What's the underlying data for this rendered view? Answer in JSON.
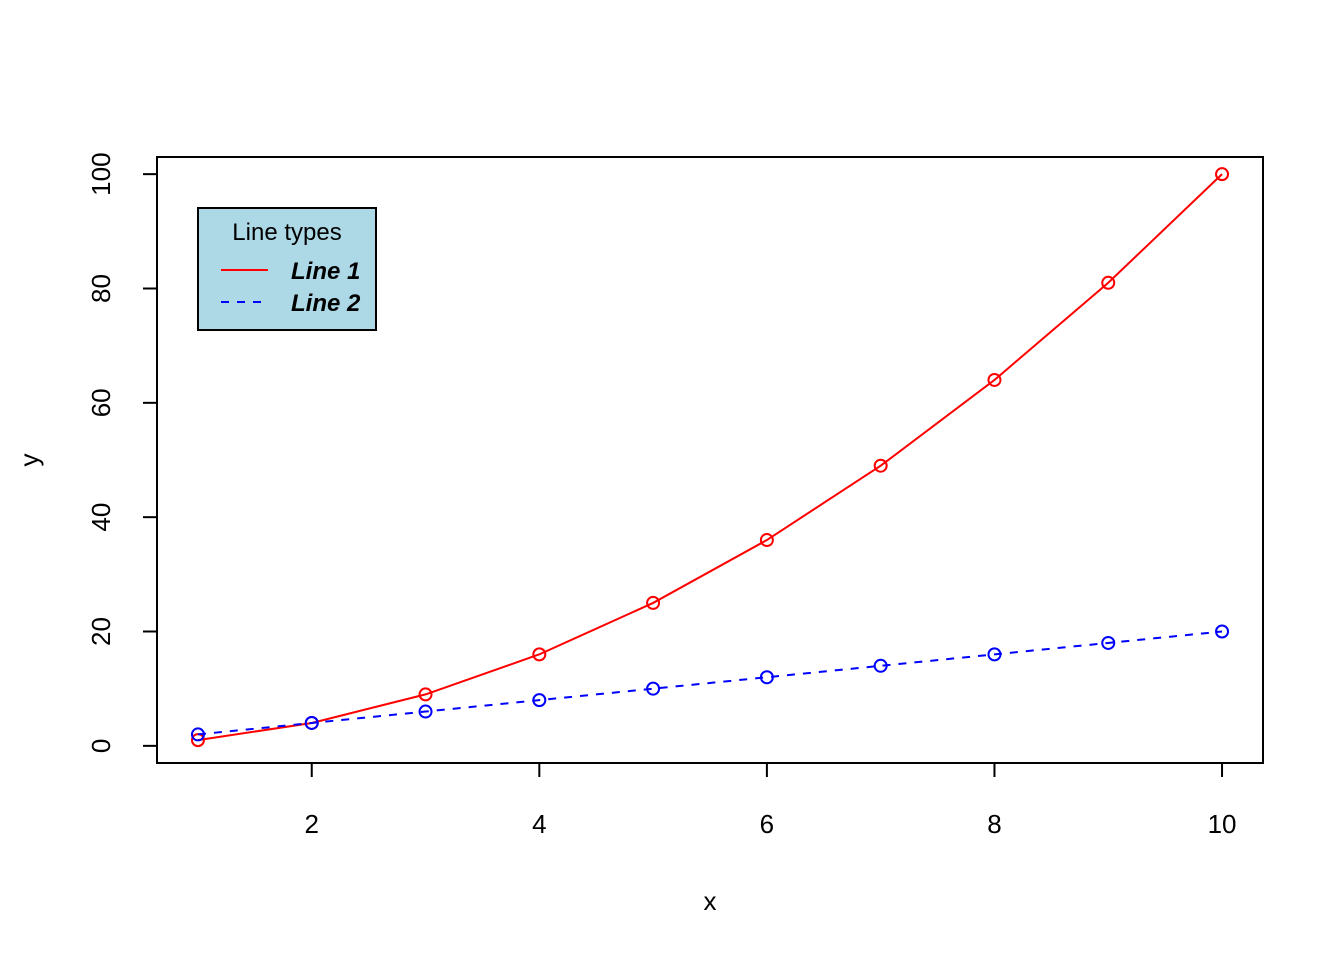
{
  "chart_data": {
    "type": "line",
    "title": "",
    "xlabel": "x",
    "ylabel": "y",
    "xlim": [
      0.64,
      10.36
    ],
    "ylim": [
      -3,
      103
    ],
    "x": [
      1,
      2,
      3,
      4,
      5,
      6,
      7,
      8,
      9,
      10
    ],
    "x_ticks": [
      2,
      4,
      6,
      8,
      10
    ],
    "y_ticks": [
      0,
      20,
      40,
      60,
      80,
      100
    ],
    "grid": false,
    "legend": {
      "title": "Line types",
      "position": "top-left",
      "background": "#add8e6"
    },
    "series": [
      {
        "name": "Line 1",
        "values": [
          1,
          4,
          9,
          16,
          25,
          36,
          49,
          64,
          81,
          100
        ],
        "color": "#ff0000",
        "line_style": "solid",
        "marker": "open-circle"
      },
      {
        "name": "Line 2",
        "values": [
          2,
          4,
          6,
          8,
          10,
          12,
          14,
          16,
          18,
          20
        ],
        "color": "#0000ff",
        "line_style": "dashed",
        "marker": "open-circle"
      }
    ]
  }
}
